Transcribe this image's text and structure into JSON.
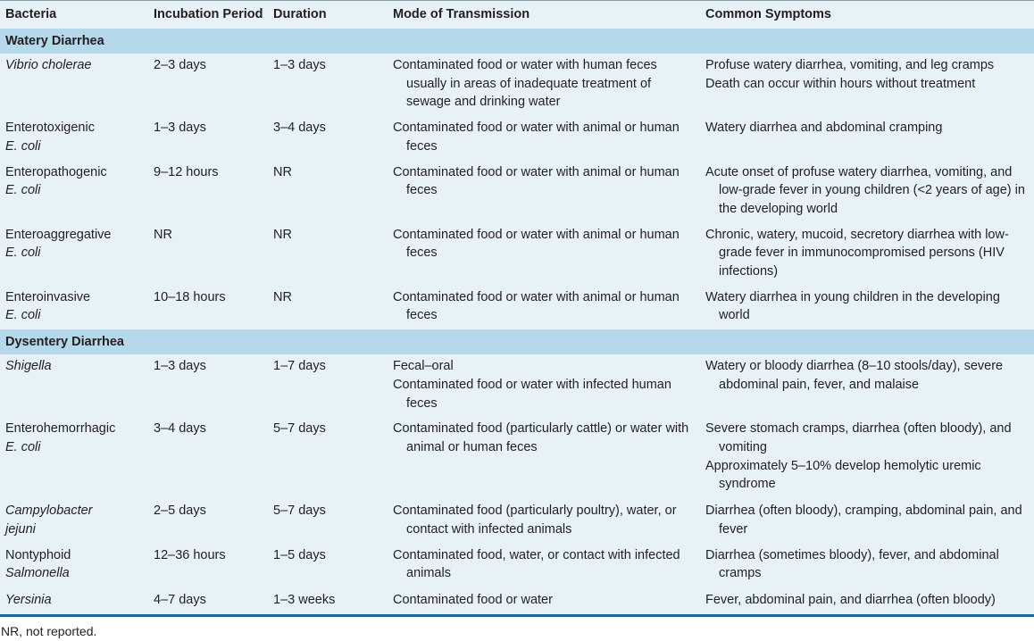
{
  "headers": [
    "Bacteria",
    "Incubation Period",
    "Duration",
    "Mode of Transmission",
    "Common Symptoms"
  ],
  "sections": [
    {
      "title": "Watery Diarrhea",
      "rows": [
        {
          "name": [
            "Vibrio cholerae"
          ],
          "italic": [
            true
          ],
          "incubation": "2–3 days",
          "duration": "1–3 days",
          "transmission": [
            "Contaminated food or water with human feces usually in areas of inadequate treatment of sewage and drinking water"
          ],
          "symptoms": [
            "Profuse watery diarrhea, vomiting, and leg cramps",
            "Death can occur within hours without treatment"
          ]
        },
        {
          "name": [
            "Enterotoxigenic",
            "E. coli"
          ],
          "italic": [
            false,
            true
          ],
          "incubation": "1–3 days",
          "duration": "3–4 days",
          "transmission": [
            "Contaminated food or water with animal or human feces"
          ],
          "symptoms": [
            "Watery diarrhea and abdominal cramping"
          ]
        },
        {
          "name": [
            "Enteropathogenic",
            "E. coli"
          ],
          "italic": [
            false,
            true
          ],
          "incubation": "9–12 hours",
          "duration": "NR",
          "transmission": [
            "Contaminated food or water with animal or human feces"
          ],
          "symptoms": [
            "Acute onset of profuse watery diarrhea, vomiting, and low-grade fever in young children (<2 years of age) in the developing world"
          ]
        },
        {
          "name": [
            "Enteroaggregative",
            "E. coli"
          ],
          "italic": [
            false,
            true
          ],
          "incubation": "NR",
          "duration": "NR",
          "transmission": [
            "Contaminated food or water with animal or human feces"
          ],
          "symptoms": [
            "Chronic, watery, mucoid, secretory diarrhea with low-grade fever in immunocompromised persons (HIV infections)"
          ]
        },
        {
          "name": [
            "Enteroinvasive",
            "E. coli"
          ],
          "italic": [
            false,
            true
          ],
          "incubation": "10–18 hours",
          "duration": "NR",
          "transmission": [
            "Contaminated food or water with animal or human feces"
          ],
          "symptoms": [
            "Watery diarrhea in young children in the developing world"
          ]
        }
      ]
    },
    {
      "title": "Dysentery Diarrhea",
      "rows": [
        {
          "name": [
            "Shigella"
          ],
          "italic": [
            true
          ],
          "incubation": "1–3 days",
          "duration": "1–7 days",
          "transmission": [
            "Fecal–oral",
            "Contaminated food or water with infected human feces"
          ],
          "symptoms": [
            "Watery or bloody diarrhea (8–10 stools/day), severe abdominal pain, fever, and malaise"
          ]
        },
        {
          "name": [
            "Enterohemorrhagic",
            "E. coli"
          ],
          "italic": [
            false,
            true
          ],
          "incubation": "3–4 days",
          "duration": "5–7 days",
          "transmission": [
            "Contaminated food (particularly cattle) or water with animal or human feces"
          ],
          "symptoms": [
            "Severe stomach cramps, diarrhea (often bloody), and vomiting",
            "Approximately 5–10% develop hemolytic uremic syndrome"
          ]
        },
        {
          "name": [
            "Campylobacter",
            "jejuni"
          ],
          "italic": [
            true,
            true
          ],
          "incubation": "2–5 days",
          "duration": "5–7 days",
          "transmission": [
            "Contaminated food (particularly poultry), water, or contact with infected animals"
          ],
          "symptoms": [
            "Diarrhea (often bloody), cramping, abdominal pain, and fever"
          ]
        },
        {
          "name": [
            "Nontyphoid",
            "Salmonella"
          ],
          "italic": [
            false,
            true
          ],
          "incubation": "12–36 hours",
          "duration": "1–5 days",
          "transmission": [
            "Contaminated food, water, or contact with infected animals"
          ],
          "symptoms": [
            "Diarrhea (sometimes bloody), fever, and abdominal cramps"
          ]
        },
        {
          "name": [
            "Yersinia"
          ],
          "italic": [
            true
          ],
          "incubation": "4–7 days",
          "duration": "1–3 weeks",
          "transmission": [
            "Contaminated food or water"
          ],
          "symptoms": [
            "Fever, abdominal pain, and diarrhea (often bloody)"
          ]
        }
      ]
    }
  ],
  "footnote": "NR, not reported.",
  "colors": {
    "body": "#e6f1f8",
    "section": "#b5d9ea",
    "rule": "#1b6a8c"
  }
}
